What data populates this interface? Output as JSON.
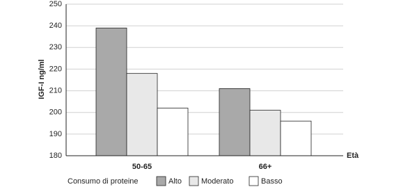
{
  "chart_data": {
    "type": "bar",
    "categories": [
      "50-65",
      "66+"
    ],
    "series": [
      {
        "name": "Alto",
        "color": "#a9a9a9",
        "values": [
          239,
          211
        ]
      },
      {
        "name": "Moderato",
        "color": "#e8e8e8",
        "values": [
          218,
          201
        ]
      },
      {
        "name": "Basso",
        "color": "#ffffff",
        "values": [
          202,
          196
        ]
      }
    ],
    "y_label": "IGF-I ng/ml",
    "x_label": "Età",
    "legend_title": "Consumo di proteine",
    "ylim": [
      180,
      250
    ],
    "yticks": [
      180,
      190,
      200,
      210,
      220,
      230,
      240,
      250
    ],
    "grid": true
  }
}
